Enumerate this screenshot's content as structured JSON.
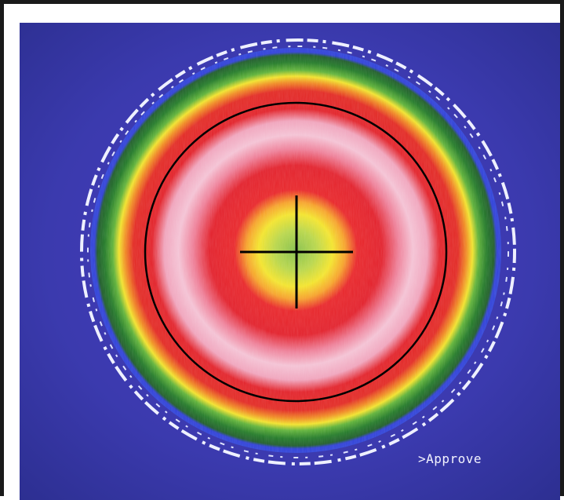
{
  "screen": {
    "colors": {
      "background": "#3a3aa8",
      "frame": "#1a1a1a",
      "ring_outer_white": "#eef0ff",
      "ring_blue": "#2f3fd8",
      "ring_green": "#2a8a2a",
      "ring_yellow": "#f1e22b",
      "ring_red": "#e0222a",
      "ring_pink": "#f0a8c0",
      "core_green": "#92c84a",
      "overlay": "#000000"
    }
  },
  "command_prompt": {
    "text": ">Approve"
  }
}
